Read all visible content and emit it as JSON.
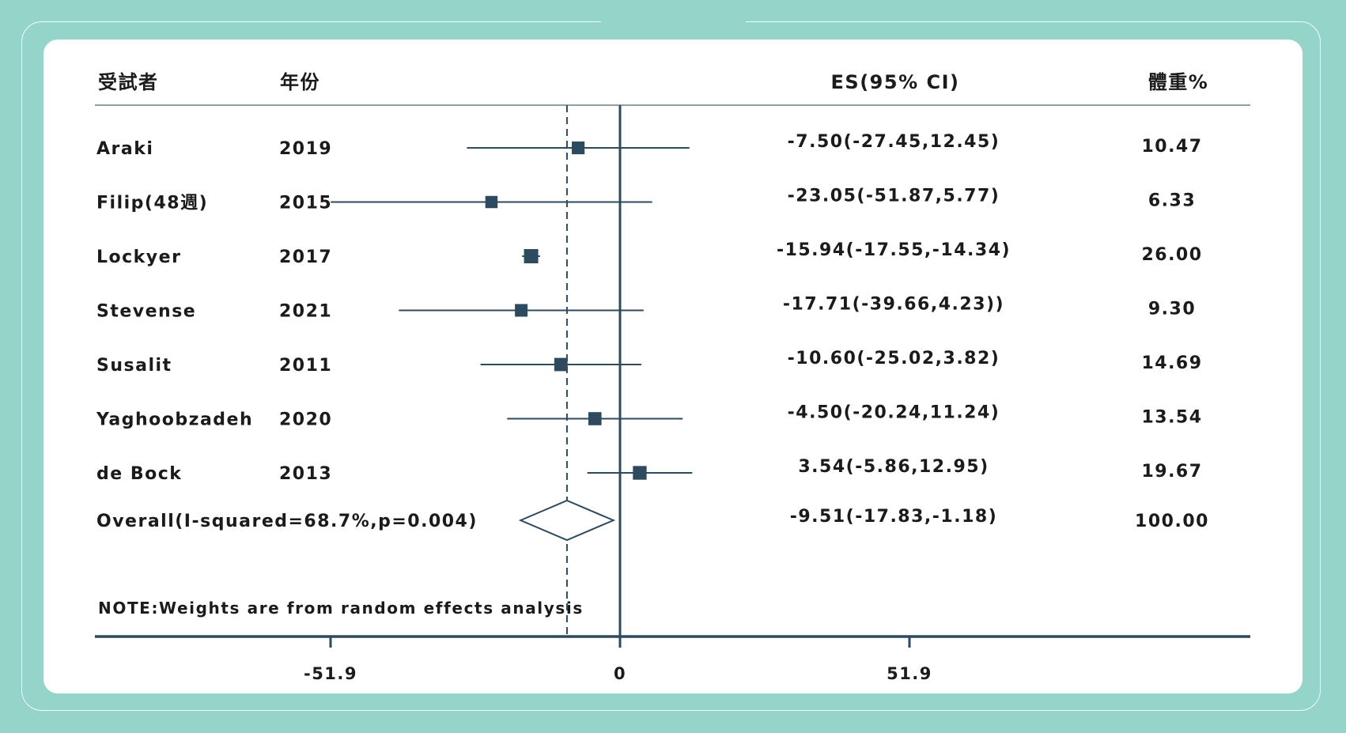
{
  "chart_data": {
    "type": "forest",
    "headers": {
      "study": "受試者",
      "year": "年份",
      "es": "ES(95% CI)",
      "weight": "體重%"
    },
    "studies": [
      {
        "name": "Araki",
        "year": "2019",
        "es": -7.5,
        "lo": -27.45,
        "hi": 12.45,
        "es_text": "-7.50(-27.45,12.45)",
        "weight": 10.47,
        "weight_text": "10.47"
      },
      {
        "name": "Filip(48週)",
        "year": "2015",
        "es": -23.05,
        "lo": -51.87,
        "hi": 5.77,
        "es_text": "-23.05(-51.87,5.77)",
        "weight": 6.33,
        "weight_text": "6.33"
      },
      {
        "name": "Lockyer",
        "year": "2017",
        "es": -15.94,
        "lo": -17.55,
        "hi": -14.34,
        "es_text": "-15.94(-17.55,-14.34)",
        "weight": 26.0,
        "weight_text": "26.00"
      },
      {
        "name": "Stevense",
        "year": "2021",
        "es": -17.71,
        "lo": -39.66,
        "hi": 4.23,
        "es_text": "-17.71(-39.66,4.23))",
        "weight": 9.3,
        "weight_text": "9.30"
      },
      {
        "name": "Susalit",
        "year": "2011",
        "es": -10.6,
        "lo": -25.02,
        "hi": 3.82,
        "es_text": "-10.60(-25.02,3.82)",
        "weight": 14.69,
        "weight_text": "14.69"
      },
      {
        "name": "Yaghoobzadeh",
        "year": "2020",
        "es": -4.5,
        "lo": -20.24,
        "hi": 11.24,
        "es_text": "-4.50(-20.24,11.24)",
        "weight": 13.54,
        "weight_text": "13.54"
      },
      {
        "name": "de Bock",
        "year": "2013",
        "es": 3.54,
        "lo": -5.86,
        "hi": 12.95,
        "es_text": "3.54(-5.86,12.95)",
        "weight": 19.67,
        "weight_text": "19.67"
      }
    ],
    "overall": {
      "label": "Overall(I-squared=68.7%,p=0.004)",
      "es": -9.51,
      "lo": -17.83,
      "hi": -1.18,
      "es_text": "-9.51(-17.83,-1.18)",
      "weight": 100.0,
      "weight_text": "100.00"
    },
    "note": "NOTE:Weights are from random effects analysis",
    "x_ticks": [
      {
        "value": -51.9,
        "label": "-51.9"
      },
      {
        "value": 0,
        "label": "0"
      },
      {
        "value": 51.9,
        "label": "51.9"
      }
    ],
    "reference_line": 0,
    "overall_line": -9.51,
    "colors": {
      "marker": "#2e4a5e",
      "line": "#2e4a5e",
      "background": "#94d4c9",
      "card": "#ffffff",
      "text": "#1b1b1b"
    }
  }
}
